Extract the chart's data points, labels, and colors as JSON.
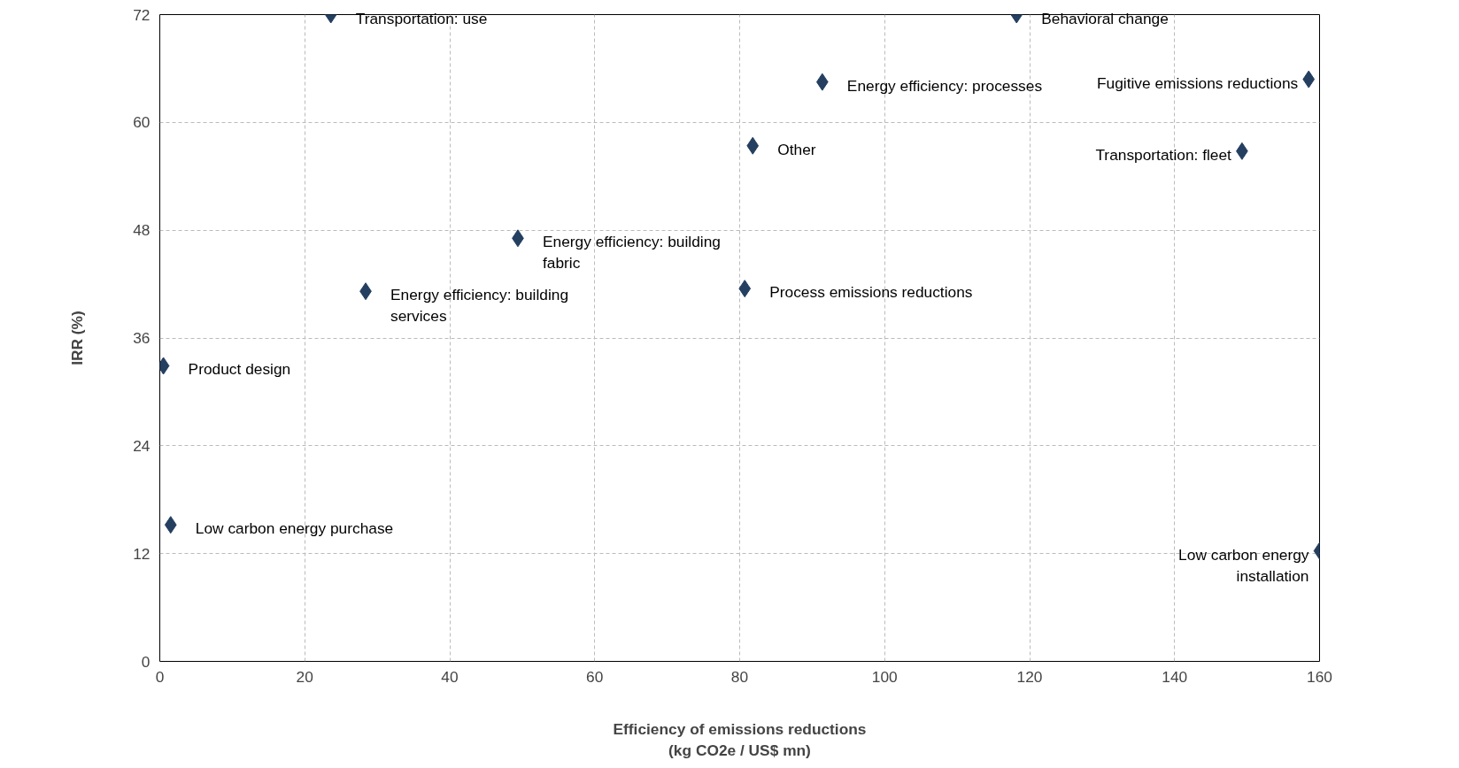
{
  "chart_data": {
    "type": "scatter",
    "xlabel": "Efficiency of emissions reductions\n(kg CO2e / US$ mn)",
    "ylabel": "IRR (%)",
    "x": [
      23.6,
      118.2,
      91.4,
      158.5,
      81.8,
      149.3,
      49.4,
      28.4,
      80.7,
      0.5,
      1.5,
      160
    ],
    "series": [
      {
        "color": "#243f60",
        "values": [
          72,
          72,
          64.5,
          64.8,
          57.4,
          56.8,
          47.1,
          41.2,
          41.5,
          32.9,
          15.2,
          12.3
        ]
      }
    ],
    "marker": "diamond",
    "grid": true,
    "xlim": [
      0,
      160
    ],
    "xticks": [
      0,
      20,
      40,
      60,
      80,
      100,
      120,
      140,
      160
    ],
    "ylim": [
      0,
      72
    ],
    "yticks": [
      0,
      12,
      24,
      36,
      48,
      60,
      72
    ],
    "annotations": [
      {
        "text": "Transportation: use",
        "x": 23.6,
        "y": 72
      },
      {
        "text": "Behavioral change",
        "x": 118.2,
        "y": 72
      },
      {
        "text": "Energy efficiency: processes",
        "x": 91.4,
        "y": 64.5
      },
      {
        "text": "Fugitive emissions reductions",
        "x": 158.5,
        "y": 64.8
      },
      {
        "text": "Other",
        "x": 81.8,
        "y": 57.4
      },
      {
        "text": "Transportation: fleet",
        "x": 149.3,
        "y": 56.8
      },
      {
        "text": "Energy efficiency: building\nfabric",
        "x": 49.4,
        "y": 47.1
      },
      {
        "text": "Energy efficiency: building\nservices",
        "x": 28.4,
        "y": 41.2
      },
      {
        "text": "Process emissions reductions",
        "x": 80.7,
        "y": 41.5
      },
      {
        "text": "Product design",
        "x": 0.5,
        "y": 32.9
      },
      {
        "text": "Low carbon energy purchase",
        "x": 1.5,
        "y": 15.2
      },
      {
        "text": "Low carbon energy\ninstallation",
        "x": 160,
        "y": 12.3
      }
    ]
  }
}
